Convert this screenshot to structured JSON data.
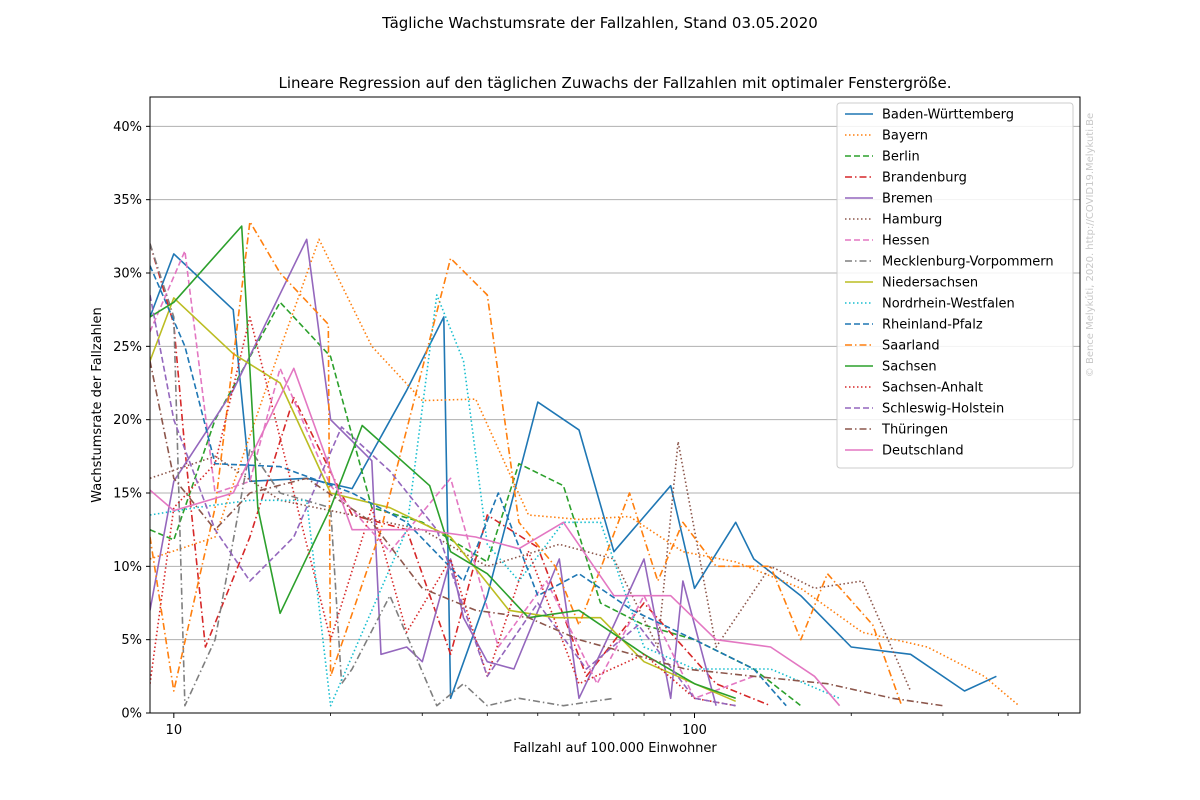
{
  "figure": {
    "suptitle": "Tägliche Wachstumsrate der Fallzahlen, Stand 03.05.2020",
    "watermark": "© Bence Melykúti, 2020. http://COVID19.Melykuti.Be"
  },
  "chart_data": {
    "type": "line",
    "title": "Lineare Regression auf den täglichen Zuwachs der Fallzahlen mit optimaler Fenstergröße.",
    "xlabel": "Fallzahl auf 100.000 Einwohner",
    "ylabel": "Wachstumsrate der Fallzahlen",
    "xscale": "log",
    "xlim": [
      9,
      550
    ],
    "ylim": [
      0,
      42
    ],
    "xticks": [
      10,
      100
    ],
    "xtick_labels": [
      "10",
      "100"
    ],
    "yticks": [
      0,
      5,
      10,
      15,
      20,
      25,
      30,
      35,
      40
    ],
    "ytick_labels": [
      "0%",
      "5%",
      "10%",
      "15%",
      "20%",
      "25%",
      "30%",
      "35%",
      "40%"
    ],
    "grid": "horizontal",
    "legend_position": "top-right",
    "series": [
      {
        "name": "Baden-Württemberg",
        "color": "#1f77b4",
        "dash": "solid",
        "x": [
          9,
          10,
          13,
          14,
          18,
          22,
          28,
          33,
          34,
          40,
          50,
          60,
          70,
          90,
          100,
          120,
          130,
          160,
          200,
          260,
          330,
          380
        ],
        "y": [
          27,
          31.3,
          27.5,
          15.8,
          16,
          15.3,
          22,
          27,
          1,
          8,
          21.2,
          19.3,
          11,
          15.5,
          8.5,
          13,
          10.5,
          8,
          4.5,
          4,
          1.5,
          2.5
        ]
      },
      {
        "name": "Bayern",
        "color": "#ff7f0e",
        "dash": "dotted",
        "x": [
          9,
          12,
          15,
          19,
          24,
          30,
          38,
          48,
          60,
          75,
          95,
          120,
          160,
          210,
          280,
          360,
          420
        ],
        "y": [
          10.5,
          12,
          22,
          32.3,
          25,
          21.3,
          21.4,
          13.5,
          13.2,
          13.4,
          11,
          10.3,
          8.5,
          5.5,
          4.5,
          2.5,
          0.5
        ]
      },
      {
        "name": "Berlin",
        "color": "#2ca02c",
        "dash": "dashed",
        "x": [
          9,
          10,
          12,
          16,
          20,
          24,
          30,
          40,
          46,
          56,
          66,
          80,
          100,
          130,
          160
        ],
        "y": [
          12.5,
          11.8,
          20,
          28,
          24.3,
          14,
          13,
          10.3,
          17,
          15.5,
          7.5,
          6,
          5,
          3,
          0.5
        ]
      },
      {
        "name": "Brandenburg",
        "color": "#d62728",
        "dash": "dashdot",
        "x": [
          9,
          10,
          10.5,
          11.5,
          14,
          17,
          22,
          28,
          34,
          40,
          50,
          62,
          80,
          110,
          140
        ],
        "y": [
          32,
          26.5,
          18,
          4.5,
          12,
          21.5,
          13.5,
          12.5,
          4,
          13.5,
          11.3,
          2.5,
          7.5,
          2,
          0.5
        ]
      },
      {
        "name": "Bremen",
        "color": "#9467bd",
        "dash": "solid",
        "x": [
          9,
          10,
          13,
          18,
          20,
          24,
          25,
          28,
          30,
          34,
          36,
          40,
          45,
          55,
          60,
          70,
          80,
          90,
          95,
          110
        ],
        "y": [
          7,
          15.8,
          22,
          32.3,
          20,
          17.2,
          4,
          4.5,
          3.5,
          10.5,
          6.5,
          3.5,
          3,
          10.5,
          1,
          6,
          10.5,
          1,
          9,
          0.5
        ]
      },
      {
        "name": "Hamburg",
        "color": "#8c564b",
        "dash": "dotted",
        "x": [
          9,
          12,
          16,
          22,
          30,
          40,
          55,
          70,
          85,
          93,
          110,
          140,
          170,
          210,
          260
        ],
        "y": [
          16,
          17.5,
          14.5,
          13.5,
          12.5,
          10,
          11.5,
          10.5,
          4.5,
          18.5,
          4.5,
          10,
          8.5,
          9,
          1.5
        ]
      },
      {
        "name": "Hessen",
        "color": "#e377c2",
        "dash": "dashed",
        "x": [
          9,
          10.5,
          12,
          14,
          16,
          20,
          26,
          34,
          42,
          52,
          65,
          80,
          100,
          130
        ],
        "y": [
          26,
          31.5,
          15,
          15.8,
          23.5,
          15.5,
          11,
          16,
          4.5,
          9,
          2,
          8,
          1,
          2.5
        ]
      },
      {
        "name": "Mecklenburg-Vorpommern",
        "color": "#7f7f7f",
        "dash": "dashdot",
        "x": [
          9,
          10,
          10.5,
          12,
          14,
          16,
          20,
          21,
          22,
          26,
          32,
          36,
          40,
          46,
          56,
          70
        ],
        "y": [
          32,
          27,
          0.5,
          5,
          18,
          15,
          14,
          2,
          3,
          8,
          0.5,
          2,
          0.5,
          1,
          0.5,
          1
        ]
      },
      {
        "name": "Niedersachsen",
        "color": "#bcbd22",
        "dash": "solid",
        "x": [
          9,
          10,
          13,
          16,
          20,
          26,
          34,
          44,
          54,
          66,
          80,
          100,
          120
        ],
        "y": [
          24,
          28.3,
          24.5,
          22.5,
          15,
          14,
          12,
          7,
          6.5,
          6.5,
          3.5,
          2,
          0.8
        ]
      },
      {
        "name": "Nordrhein-Westfalen",
        "color": "#17becf",
        "dash": "dotted",
        "x": [
          9,
          11,
          14,
          18,
          20,
          28,
          32,
          36,
          40,
          46,
          56,
          66,
          80,
          100,
          140,
          190
        ],
        "y": [
          13.5,
          14,
          14.5,
          14.5,
          0.5,
          12.5,
          28.5,
          24,
          11.5,
          9,
          13,
          13,
          4.5,
          3,
          3,
          1
        ]
      },
      {
        "name": "Rheinland-Pfalz",
        "color": "#1f77b4",
        "dash": "dashed",
        "x": [
          9,
          10.5,
          12,
          16,
          22,
          28,
          36,
          42,
          50,
          60,
          76,
          100,
          130,
          150
        ],
        "y": [
          30.5,
          25,
          17,
          16.8,
          15,
          13,
          9,
          15,
          8,
          9.5,
          7,
          5,
          3,
          0.5
        ]
      },
      {
        "name": "Saarland",
        "color": "#ff7f0e",
        "dash": "dashdot",
        "x": [
          9,
          10,
          12,
          14,
          16,
          19.8,
          20,
          25,
          34,
          40,
          46,
          54,
          60,
          75,
          85,
          95,
          110,
          140,
          160,
          180,
          220,
          250
        ],
        "y": [
          12,
          1.5,
          14,
          33.5,
          30,
          26.5,
          2.5,
          12.5,
          31,
          28.5,
          13,
          10,
          6,
          15,
          9,
          13,
          10,
          10,
          5,
          9.5,
          6,
          0.5
        ]
      },
      {
        "name": "Sachsen",
        "color": "#2ca02c",
        "dash": "solid",
        "x": [
          9,
          10,
          13.5,
          14.5,
          16,
          20,
          23,
          31,
          34,
          40,
          48,
          60,
          80,
          100,
          120
        ],
        "y": [
          27,
          28,
          33.2,
          14,
          6.8,
          14,
          19.6,
          15.5,
          11,
          9.5,
          6.5,
          7,
          4,
          2,
          1
        ]
      },
      {
        "name": "Sachsen-Anhalt",
        "color": "#d62728",
        "dash": "dotted",
        "x": [
          9,
          10,
          12,
          14,
          17,
          20,
          24,
          28,
          34,
          40,
          48,
          60,
          80,
          100,
          120
        ],
        "y": [
          2,
          14,
          17,
          27,
          15,
          5,
          14,
          5.5,
          10.5,
          2.5,
          11,
          2,
          4,
          1,
          0.5
        ]
      },
      {
        "name": "Schleswig-Holstein",
        "color": "#9467bd",
        "dash": "dashed",
        "x": [
          9,
          10,
          12,
          14,
          17,
          21,
          26,
          32,
          40,
          50,
          62,
          78,
          100,
          120
        ],
        "y": [
          28.5,
          20,
          12.5,
          9,
          12,
          19.5,
          16.5,
          12.5,
          2.5,
          7.5,
          3,
          6,
          1,
          0.5
        ]
      },
      {
        "name": "Thüringen",
        "color": "#8c564b",
        "dash": "dashdot",
        "x": [
          9,
          10,
          12,
          14,
          18,
          24,
          30,
          38,
          48,
          60,
          76,
          96,
          130,
          180,
          240,
          300
        ],
        "y": [
          24,
          16,
          12.5,
          15,
          16,
          13,
          8.5,
          7,
          6.5,
          5,
          4,
          3,
          2.5,
          2,
          1,
          0.5
        ]
      },
      {
        "name": "Deutschland",
        "color": "#e377c2",
        "dash": "solid",
        "x": [
          9,
          10,
          13,
          17,
          22,
          30,
          38,
          46,
          56,
          70,
          90,
          110,
          140,
          170,
          190
        ],
        "y": [
          15.2,
          13.8,
          15,
          23.5,
          12.5,
          12.5,
          12,
          11.2,
          13,
          8,
          8,
          5,
          4.5,
          2.5,
          0.5
        ]
      }
    ]
  }
}
